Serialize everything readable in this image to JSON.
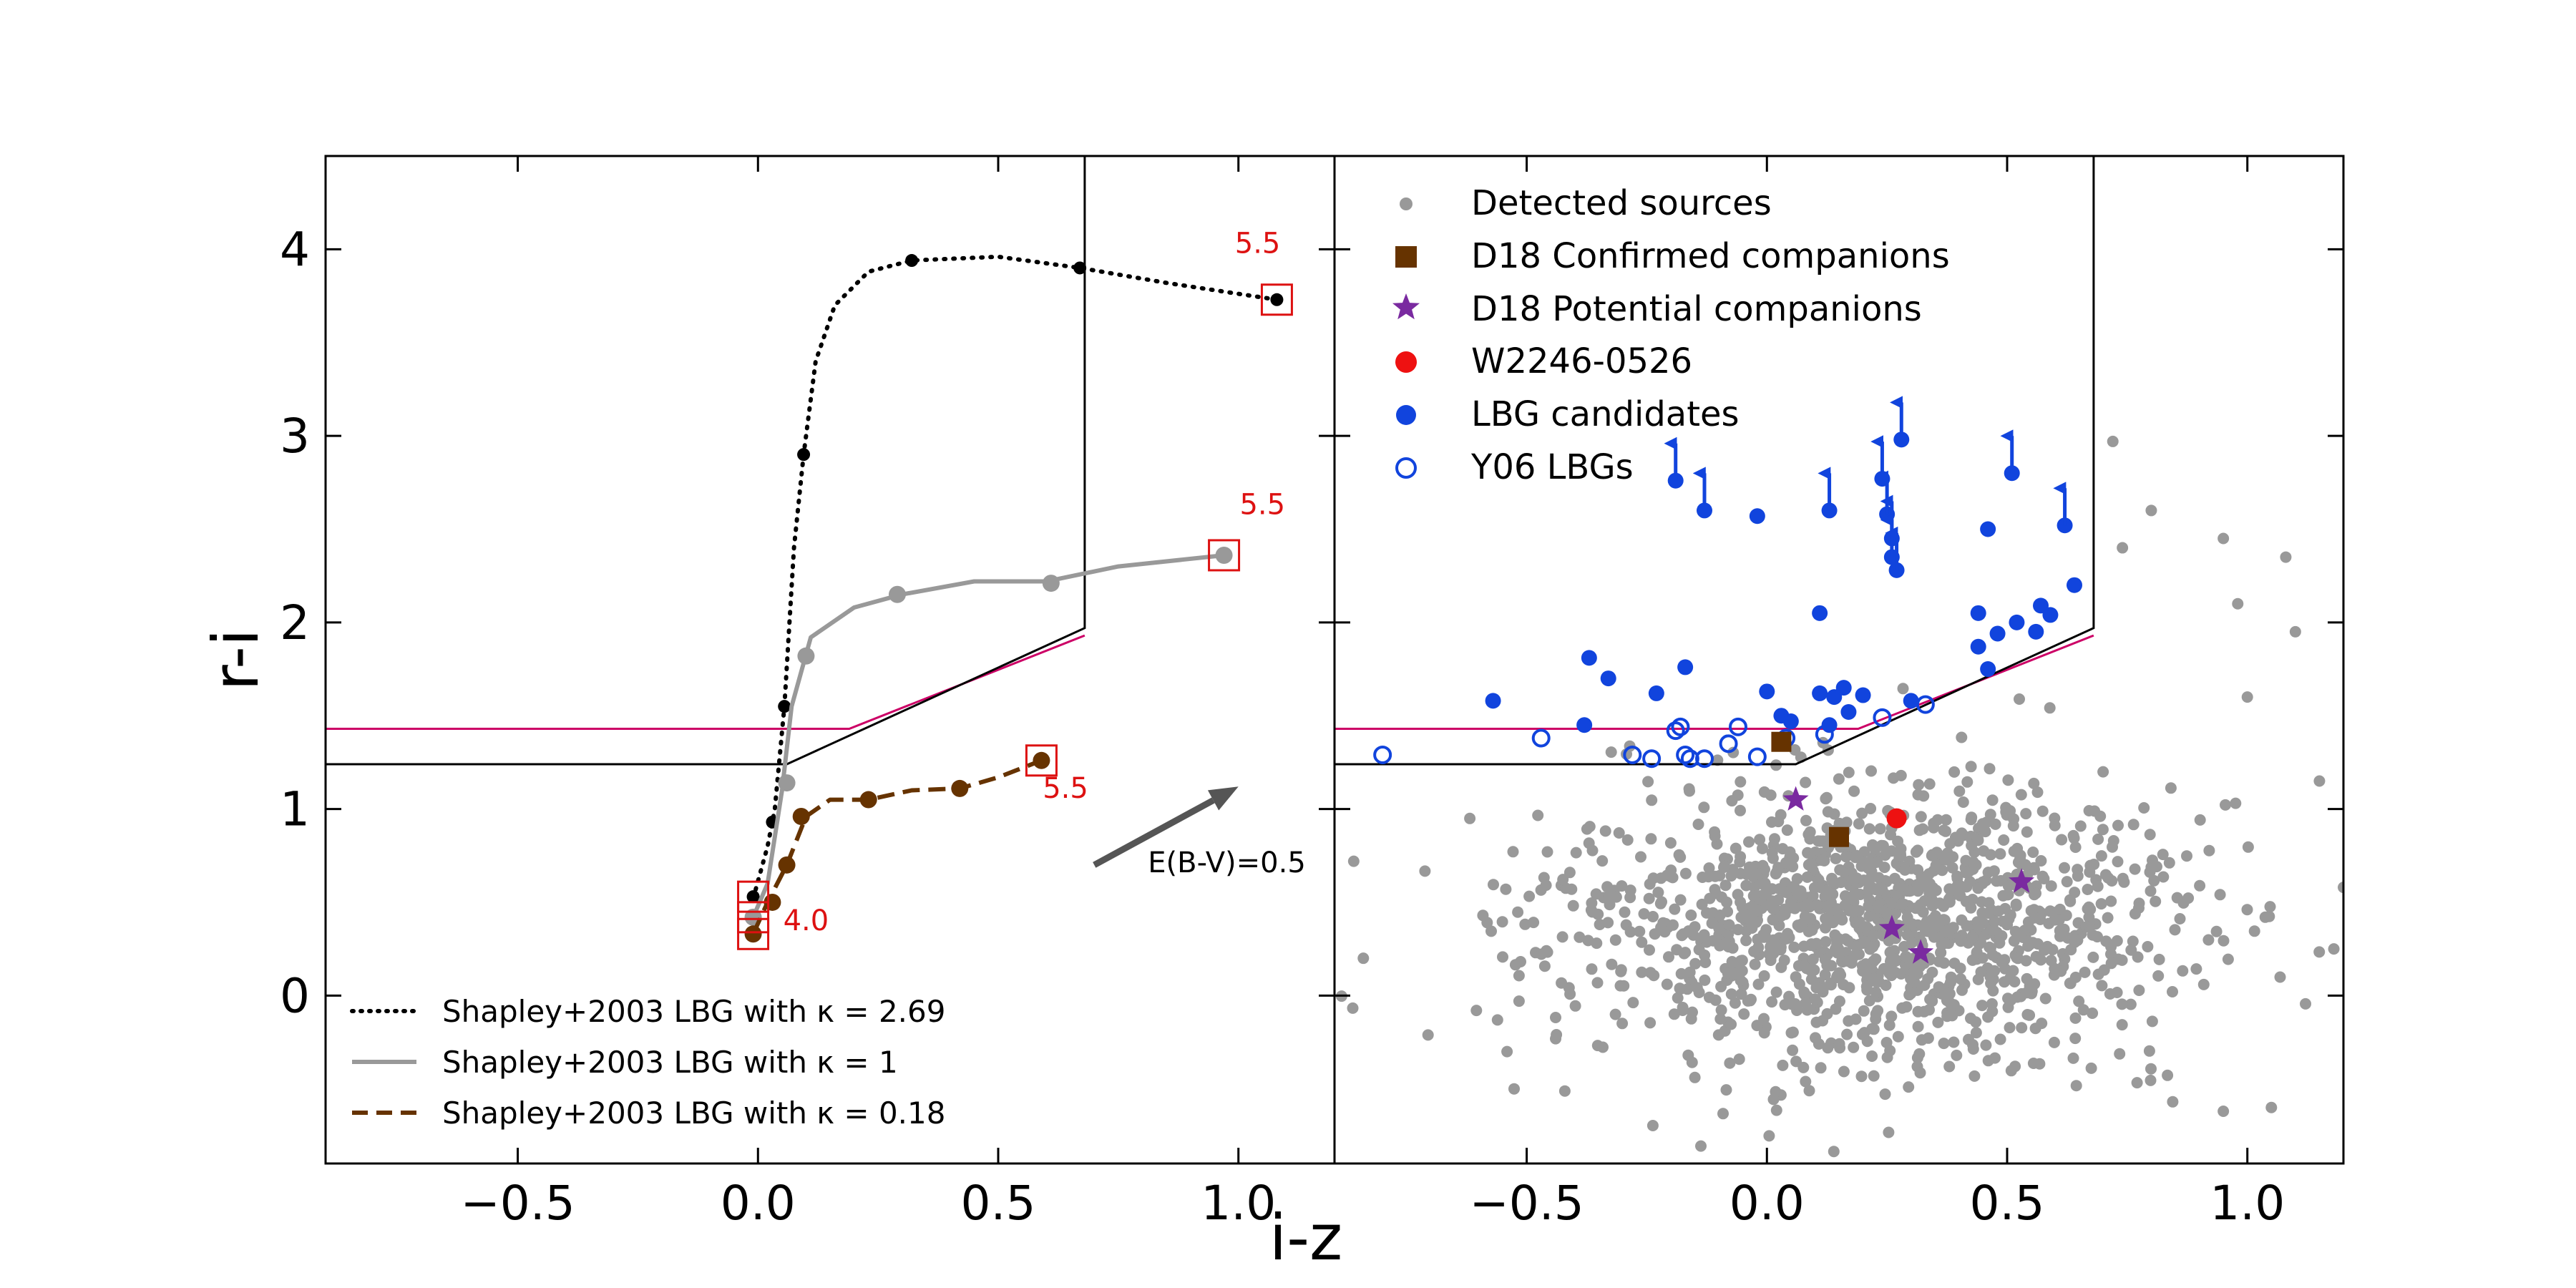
{
  "colors": {
    "kappa_high": "#000000",
    "kappa_1": "#999999",
    "kappa_low": "#663300",
    "selection_box": "#000000",
    "selection_line": "#cc0066",
    "marker_box": "#dd1111",
    "detected": "#999999",
    "confirmed": "#663300",
    "potential": "#7a2aa0",
    "target": "#ee1111",
    "lbg": "#1144dd",
    "y06": "#1144dd",
    "reddening_arrow": "#555555"
  },
  "chart_data": [
    {
      "type": "line",
      "panel": "left",
      "xlabel": "i-z",
      "ylabel": "r-i",
      "xlim": [
        -0.9,
        1.2
      ],
      "ylim": [
        -0.9,
        4.5
      ],
      "xticks": [
        -0.5,
        0.0,
        0.5,
        1.0
      ],
      "xtick_labels": [
        "−0.5",
        "0.0",
        "0.5",
        "1.0"
      ],
      "yticks": [
        0,
        1,
        2,
        3,
        4
      ],
      "ytick_labels": [
        "0",
        "1",
        "2",
        "3",
        "4"
      ],
      "grid": false,
      "legend_position": "lower-left",
      "selection_box": [
        [
          -0.9,
          1.24
        ],
        [
          0.06,
          1.24
        ],
        [
          0.68,
          1.97
        ],
        [
          0.68,
          4.5
        ]
      ],
      "selection_line": [
        [
          -0.9,
          1.43
        ],
        [
          0.19,
          1.43
        ],
        [
          0.68,
          1.93
        ]
      ],
      "series": [
        {
          "name": "Shapley+2003 LBG with κ = 2.69",
          "style": "dotted",
          "line": [
            [
              -0.01,
              0.52
            ],
            [
              0.02,
              0.8
            ],
            [
              0.035,
              1.0
            ],
            [
              0.055,
              1.55
            ],
            [
              0.075,
              2.4
            ],
            [
              0.095,
              2.9
            ],
            [
              0.12,
              3.4
            ],
            [
              0.16,
              3.7
            ],
            [
              0.23,
              3.88
            ],
            [
              0.32,
              3.94
            ],
            [
              0.5,
              3.96
            ],
            [
              0.67,
              3.9
            ],
            [
              0.85,
              3.82
            ],
            [
              1.08,
              3.73
            ]
          ],
          "points": [
            [
              -0.01,
              0.53
            ],
            [
              0.03,
              0.93
            ],
            [
              0.055,
              1.55
            ],
            [
              0.095,
              2.9
            ],
            [
              0.32,
              3.94
            ],
            [
              0.67,
              3.9
            ],
            [
              1.08,
              3.73
            ]
          ]
        },
        {
          "name": "Shapley+2003 LBG with κ = 1",
          "style": "solid",
          "line": [
            [
              -0.01,
              0.42
            ],
            [
              0.02,
              0.6
            ],
            [
              0.05,
              1.1
            ],
            [
              0.07,
              1.55
            ],
            [
              0.11,
              1.92
            ],
            [
              0.2,
              2.08
            ],
            [
              0.3,
              2.15
            ],
            [
              0.45,
              2.22
            ],
            [
              0.6,
              2.22
            ],
            [
              0.75,
              2.3
            ],
            [
              0.97,
              2.36
            ]
          ],
          "points": [
            [
              -0.01,
              0.42
            ],
            [
              0.06,
              1.14
            ],
            [
              0.1,
              1.82
            ],
            [
              0.29,
              2.15
            ],
            [
              0.61,
              2.21
            ],
            [
              0.97,
              2.36
            ]
          ]
        },
        {
          "name": "Shapley+2003 LBG with κ = 0.18",
          "style": "dashed",
          "line": [
            [
              -0.01,
              0.33
            ],
            [
              0.02,
              0.5
            ],
            [
              0.06,
              0.7
            ],
            [
              0.1,
              0.96
            ],
            [
              0.15,
              1.05
            ],
            [
              0.23,
              1.05
            ],
            [
              0.32,
              1.1
            ],
            [
              0.42,
              1.11
            ],
            [
              0.5,
              1.17
            ],
            [
              0.59,
              1.26
            ]
          ],
          "points": [
            [
              -0.01,
              0.33
            ],
            [
              0.03,
              0.5
            ],
            [
              0.06,
              0.7
            ],
            [
              0.09,
              0.96
            ],
            [
              0.23,
              1.05
            ],
            [
              0.42,
              1.11
            ],
            [
              0.59,
              1.26
            ]
          ]
        }
      ],
      "redshift_boxes": [
        [
          -0.01,
          0.53
        ],
        [
          -0.01,
          0.42
        ],
        [
          -0.01,
          0.33
        ],
        [
          1.08,
          3.73
        ],
        [
          0.97,
          2.36
        ],
        [
          0.59,
          1.26
        ]
      ],
      "annotations": [
        {
          "text": "5.5",
          "x": 1.04,
          "y": 3.98
        },
        {
          "text": "5.5",
          "x": 1.05,
          "y": 2.58
        },
        {
          "text": "5.5",
          "x": 0.64,
          "y": 1.06
        },
        {
          "text": "4.0",
          "x": 0.1,
          "y": 0.35
        }
      ],
      "reddening_vector": {
        "label": "E(B-V)=0.5",
        "from": [
          0.7,
          0.7
        ],
        "to": [
          1.0,
          1.12
        ]
      }
    },
    {
      "type": "scatter",
      "panel": "right",
      "xlabel": "i-z",
      "xlim": [
        -0.9,
        1.2
      ],
      "ylim": [
        -0.9,
        4.5
      ],
      "xticks": [
        -0.5,
        0.0,
        0.5,
        1.0
      ],
      "xtick_labels": [
        "−0.5",
        "0.0",
        "0.5",
        "1.0"
      ],
      "grid": false,
      "legend_position": "upper-left",
      "selection_box": [
        [
          -0.9,
          1.24
        ],
        [
          0.06,
          1.24
        ],
        [
          0.68,
          1.97
        ],
        [
          0.68,
          4.5
        ]
      ],
      "selection_line": [
        [
          -0.9,
          1.43
        ],
        [
          0.19,
          1.43
        ],
        [
          0.68,
          1.93
        ]
      ],
      "detected_sources": {
        "count": 1400,
        "center": [
          0.2,
          0.4
        ],
        "spread": [
          0.32,
          0.45
        ],
        "extra_points": [
          [
            0.72,
            2.97
          ],
          [
            0.8,
            2.6
          ],
          [
            0.95,
            2.45
          ],
          [
            0.98,
            2.1
          ],
          [
            0.74,
            2.4
          ],
          [
            1.0,
            1.6
          ],
          [
            1.08,
            2.35
          ],
          [
            1.1,
            1.95
          ],
          [
            -0.86,
            0.72
          ],
          [
            -0.84,
            0.2
          ],
          [
            1.15,
            1.15
          ],
          [
            1.18,
            0.25
          ],
          [
            1.2,
            0.58
          ],
          [
            1.05,
            -0.6
          ],
          [
            0.95,
            -0.62
          ]
        ]
      },
      "series": [
        {
          "name": "Detected sources",
          "marker": "small dot"
        },
        {
          "name": "D18 Confirmed companions",
          "marker": "square",
          "points": [
            [
              0.03,
              1.36
            ],
            [
              0.15,
              0.85
            ]
          ]
        },
        {
          "name": "D18 Potential companions",
          "marker": "star",
          "points": [
            [
              0.06,
              1.05
            ],
            [
              0.26,
              0.36
            ],
            [
              0.32,
              0.23
            ],
            [
              0.53,
              0.61
            ]
          ]
        },
        {
          "name": "W2246-0526",
          "marker": "filled circle",
          "points": [
            [
              0.27,
              0.95
            ]
          ]
        },
        {
          "name": "LBG candidates",
          "marker": "filled circle",
          "points": [
            [
              -0.57,
              1.58
            ],
            [
              -0.37,
              1.81
            ],
            [
              -0.33,
              1.7
            ],
            [
              -0.38,
              1.45
            ],
            [
              -0.23,
              1.62
            ],
            [
              -0.17,
              1.76
            ],
            [
              0.0,
              1.63
            ],
            [
              0.03,
              1.5
            ],
            [
              0.05,
              1.47
            ],
            [
              0.11,
              1.62
            ],
            [
              0.14,
              1.6
            ],
            [
              0.16,
              1.65
            ],
            [
              0.17,
              1.52
            ],
            [
              0.2,
              1.61
            ],
            [
              0.13,
              1.45
            ],
            [
              0.3,
              1.58
            ],
            [
              -0.02,
              2.57
            ],
            [
              0.11,
              2.05
            ],
            [
              0.44,
              1.87
            ],
            [
              0.48,
              1.94
            ],
            [
              0.46,
              1.75
            ],
            [
              0.44,
              2.05
            ],
            [
              0.52,
              2.0
            ],
            [
              0.56,
              1.95
            ],
            [
              0.57,
              2.09
            ],
            [
              0.59,
              2.04
            ],
            [
              0.64,
              2.2
            ],
            [
              0.46,
              2.5
            ]
          ]
        },
        {
          "name": "LBG candidates (lower limits)",
          "marker": "filled circle with up arrow",
          "points": [
            [
              -0.19,
              2.76
            ],
            [
              -0.13,
              2.6
            ],
            [
              0.13,
              2.6
            ],
            [
              0.24,
              2.77
            ],
            [
              0.25,
              2.58
            ],
            [
              0.26,
              2.45
            ],
            [
              0.26,
              2.35
            ],
            [
              0.27,
              2.28
            ],
            [
              0.28,
              2.98
            ],
            [
              0.51,
              2.8
            ],
            [
              0.62,
              2.52
            ]
          ]
        },
        {
          "name": "Y06 LBGs",
          "marker": "open circle",
          "points": [
            [
              -0.8,
              1.29
            ],
            [
              -0.47,
              1.38
            ],
            [
              -0.28,
              1.29
            ],
            [
              -0.24,
              1.27
            ],
            [
              -0.19,
              1.42
            ],
            [
              -0.18,
              1.44
            ],
            [
              -0.17,
              1.29
            ],
            [
              -0.16,
              1.27
            ],
            [
              -0.13,
              1.27
            ],
            [
              -0.08,
              1.35
            ],
            [
              -0.06,
              1.44
            ],
            [
              -0.02,
              1.28
            ],
            [
              0.04,
              1.38
            ],
            [
              0.12,
              1.4
            ],
            [
              0.24,
              1.49
            ],
            [
              0.33,
              1.56
            ]
          ]
        }
      ]
    }
  ]
}
